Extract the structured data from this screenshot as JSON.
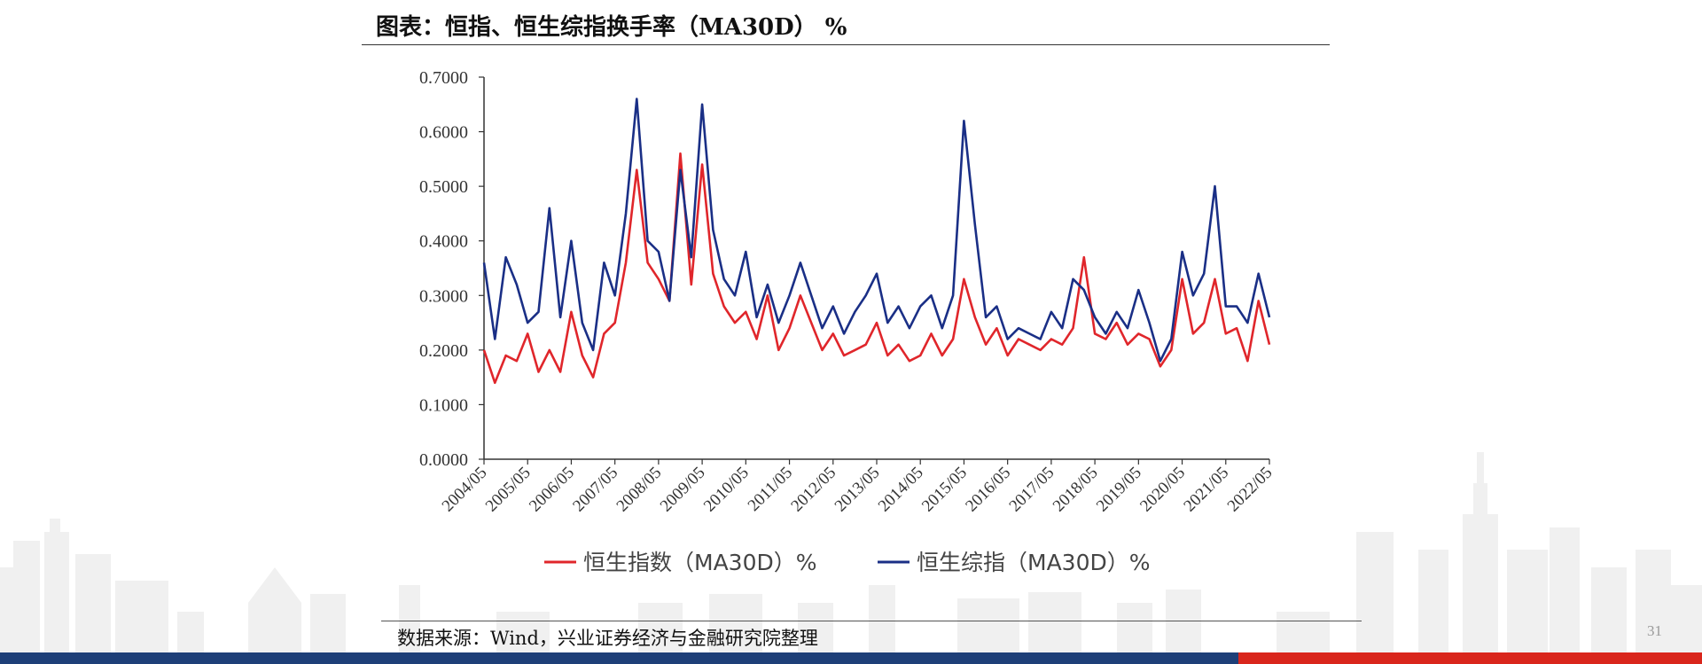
{
  "title": "图表：恒指、恒生综指换手率（MA30D） %",
  "source": "数据来源：Wind，兴业证券经济与金融研究院整理",
  "page_number": "31",
  "colors": {
    "series_red": "#e0262b",
    "series_blue": "#1a2f86",
    "bar_blue": "#1e3f78",
    "bar_red": "#d9261c"
  },
  "chart_data": {
    "type": "line",
    "title": "",
    "xlabel": "",
    "ylabel": "",
    "ylim": [
      0,
      0.7
    ],
    "yticks": [
      "0.0000",
      "0.1000",
      "0.2000",
      "0.3000",
      "0.4000",
      "0.5000",
      "0.6000",
      "0.7000"
    ],
    "xticks": [
      "2004/05",
      "2005/05",
      "2006/05",
      "2007/05",
      "2008/05",
      "2009/05",
      "2010/05",
      "2011/05",
      "2012/05",
      "2013/05",
      "2014/05",
      "2015/05",
      "2016/05",
      "2017/05",
      "2018/05",
      "2019/05",
      "2020/05",
      "2021/05",
      "2022/05"
    ],
    "legend_position": "bottom",
    "series": [
      {
        "name": "恒生指数（MA30D）%",
        "color": "#e0262b",
        "points": [
          [
            "2004/05",
            0.2
          ],
          [
            "2004/08",
            0.14
          ],
          [
            "2004/11",
            0.19
          ],
          [
            "2005/02",
            0.18
          ],
          [
            "2005/05",
            0.23
          ],
          [
            "2005/08",
            0.16
          ],
          [
            "2005/11",
            0.2
          ],
          [
            "2006/02",
            0.16
          ],
          [
            "2006/05",
            0.27
          ],
          [
            "2006/08",
            0.19
          ],
          [
            "2006/11",
            0.15
          ],
          [
            "2007/02",
            0.23
          ],
          [
            "2007/05",
            0.25
          ],
          [
            "2007/08",
            0.36
          ],
          [
            "2007/11",
            0.53
          ],
          [
            "2008/02",
            0.36
          ],
          [
            "2008/05",
            0.33
          ],
          [
            "2008/08",
            0.29
          ],
          [
            "2008/11",
            0.56
          ],
          [
            "2009/02",
            0.32
          ],
          [
            "2009/05",
            0.54
          ],
          [
            "2009/08",
            0.34
          ],
          [
            "2009/11",
            0.28
          ],
          [
            "2010/02",
            0.25
          ],
          [
            "2010/05",
            0.27
          ],
          [
            "2010/08",
            0.22
          ],
          [
            "2010/11",
            0.3
          ],
          [
            "2011/02",
            0.2
          ],
          [
            "2011/05",
            0.24
          ],
          [
            "2011/08",
            0.3
          ],
          [
            "2011/11",
            0.25
          ],
          [
            "2012/02",
            0.2
          ],
          [
            "2012/05",
            0.23
          ],
          [
            "2012/08",
            0.19
          ],
          [
            "2012/11",
            0.2
          ],
          [
            "2013/02",
            0.21
          ],
          [
            "2013/05",
            0.25
          ],
          [
            "2013/08",
            0.19
          ],
          [
            "2013/11",
            0.21
          ],
          [
            "2014/02",
            0.18
          ],
          [
            "2014/05",
            0.19
          ],
          [
            "2014/08",
            0.23
          ],
          [
            "2014/11",
            0.19
          ],
          [
            "2015/02",
            0.22
          ],
          [
            "2015/05",
            0.33
          ],
          [
            "2015/08",
            0.26
          ],
          [
            "2015/11",
            0.21
          ],
          [
            "2016/02",
            0.24
          ],
          [
            "2016/05",
            0.19
          ],
          [
            "2016/08",
            0.22
          ],
          [
            "2016/11",
            0.21
          ],
          [
            "2017/02",
            0.2
          ],
          [
            "2017/05",
            0.22
          ],
          [
            "2017/08",
            0.21
          ],
          [
            "2017/11",
            0.24
          ],
          [
            "2018/02",
            0.37
          ],
          [
            "2018/05",
            0.23
          ],
          [
            "2018/08",
            0.22
          ],
          [
            "2018/11",
            0.25
          ],
          [
            "2019/02",
            0.21
          ],
          [
            "2019/05",
            0.23
          ],
          [
            "2019/08",
            0.22
          ],
          [
            "2019/11",
            0.17
          ],
          [
            "2020/02",
            0.2
          ],
          [
            "2020/05",
            0.33
          ],
          [
            "2020/08",
            0.23
          ],
          [
            "2020/11",
            0.25
          ],
          [
            "2021/02",
            0.33
          ],
          [
            "2021/05",
            0.23
          ],
          [
            "2021/08",
            0.24
          ],
          [
            "2021/11",
            0.18
          ],
          [
            "2022/02",
            0.29
          ],
          [
            "2022/05",
            0.21
          ]
        ]
      },
      {
        "name": "恒生综指（MA30D）%",
        "color": "#1a2f86",
        "points": [
          [
            "2004/05",
            0.36
          ],
          [
            "2004/08",
            0.22
          ],
          [
            "2004/11",
            0.37
          ],
          [
            "2005/02",
            0.32
          ],
          [
            "2005/05",
            0.25
          ],
          [
            "2005/08",
            0.27
          ],
          [
            "2005/11",
            0.46
          ],
          [
            "2006/02",
            0.26
          ],
          [
            "2006/05",
            0.4
          ],
          [
            "2006/08",
            0.25
          ],
          [
            "2006/11",
            0.2
          ],
          [
            "2007/02",
            0.36
          ],
          [
            "2007/05",
            0.3
          ],
          [
            "2007/08",
            0.45
          ],
          [
            "2007/11",
            0.66
          ],
          [
            "2008/02",
            0.4
          ],
          [
            "2008/05",
            0.38
          ],
          [
            "2008/08",
            0.29
          ],
          [
            "2008/11",
            0.53
          ],
          [
            "2009/02",
            0.37
          ],
          [
            "2009/05",
            0.65
          ],
          [
            "2009/08",
            0.42
          ],
          [
            "2009/11",
            0.33
          ],
          [
            "2010/02",
            0.3
          ],
          [
            "2010/05",
            0.38
          ],
          [
            "2010/08",
            0.26
          ],
          [
            "2010/11",
            0.32
          ],
          [
            "2011/02",
            0.25
          ],
          [
            "2011/05",
            0.3
          ],
          [
            "2011/08",
            0.36
          ],
          [
            "2011/11",
            0.3
          ],
          [
            "2012/02",
            0.24
          ],
          [
            "2012/05",
            0.28
          ],
          [
            "2012/08",
            0.23
          ],
          [
            "2012/11",
            0.27
          ],
          [
            "2013/02",
            0.3
          ],
          [
            "2013/05",
            0.34
          ],
          [
            "2013/08",
            0.25
          ],
          [
            "2013/11",
            0.28
          ],
          [
            "2014/02",
            0.24
          ],
          [
            "2014/05",
            0.28
          ],
          [
            "2014/08",
            0.3
          ],
          [
            "2014/11",
            0.24
          ],
          [
            "2015/02",
            0.3
          ],
          [
            "2015/05",
            0.62
          ],
          [
            "2015/08",
            0.43
          ],
          [
            "2015/11",
            0.26
          ],
          [
            "2016/02",
            0.28
          ],
          [
            "2016/05",
            0.22
          ],
          [
            "2016/08",
            0.24
          ],
          [
            "2016/11",
            0.23
          ],
          [
            "2017/02",
            0.22
          ],
          [
            "2017/05",
            0.27
          ],
          [
            "2017/08",
            0.24
          ],
          [
            "2017/11",
            0.33
          ],
          [
            "2018/02",
            0.31
          ],
          [
            "2018/05",
            0.26
          ],
          [
            "2018/08",
            0.23
          ],
          [
            "2018/11",
            0.27
          ],
          [
            "2019/02",
            0.24
          ],
          [
            "2019/05",
            0.31
          ],
          [
            "2019/08",
            0.25
          ],
          [
            "2019/11",
            0.18
          ],
          [
            "2020/02",
            0.22
          ],
          [
            "2020/05",
            0.38
          ],
          [
            "2020/08",
            0.3
          ],
          [
            "2020/11",
            0.34
          ],
          [
            "2021/02",
            0.5
          ],
          [
            "2021/05",
            0.28
          ],
          [
            "2021/08",
            0.28
          ],
          [
            "2021/11",
            0.25
          ],
          [
            "2022/02",
            0.34
          ],
          [
            "2022/05",
            0.26
          ]
        ]
      }
    ]
  }
}
